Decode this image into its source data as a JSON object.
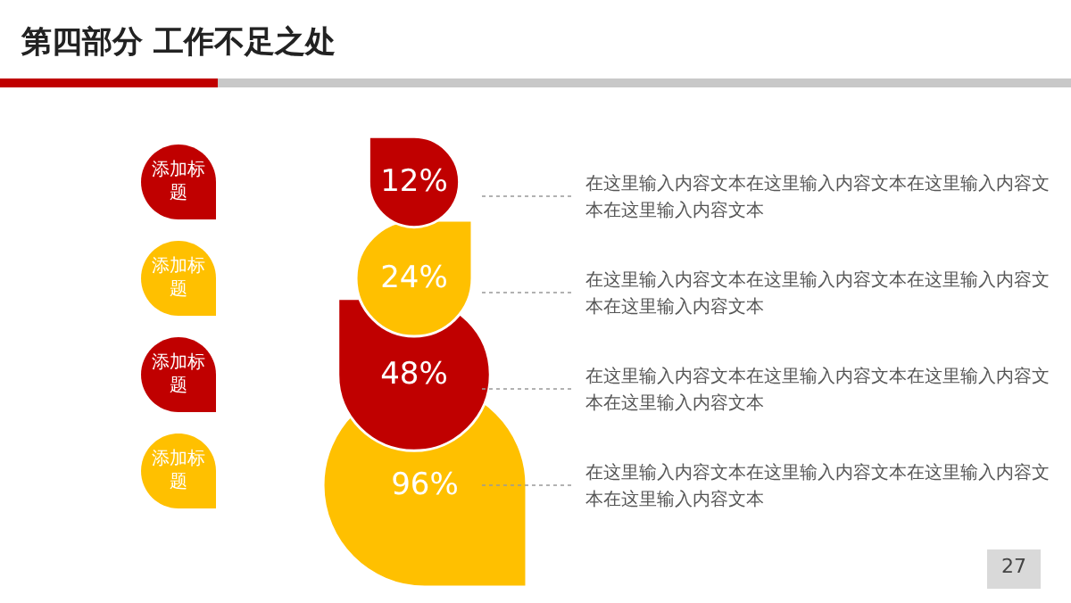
{
  "chart_data": {
    "type": "other",
    "title": "第四部分  工作不足之处",
    "categories": [
      "添加标题",
      "添加标题",
      "添加标题",
      "添加标题"
    ],
    "values": [
      12,
      24,
      48,
      96
    ],
    "value_labels": [
      "12%",
      "24%",
      "48%",
      "96%"
    ],
    "colors": [
      "#c00000",
      "#ffc000",
      "#c00000",
      "#ffc000"
    ],
    "annotations": [
      "在这里输入内容文本在这里输入内容文本在这里输入内容文本在这里输入内容文本",
      "在这里输入内容文本在这里输入内容文本在这里输入内容文本在这里输入内容文本",
      "在这里输入内容文本在这里输入内容文本在这里输入内容文本在这里输入内容文本",
      "在这里输入内容文本在这里输入内容文本在这里输入内容文本在这里输入内容文本",
      "27"
    ]
  }
}
